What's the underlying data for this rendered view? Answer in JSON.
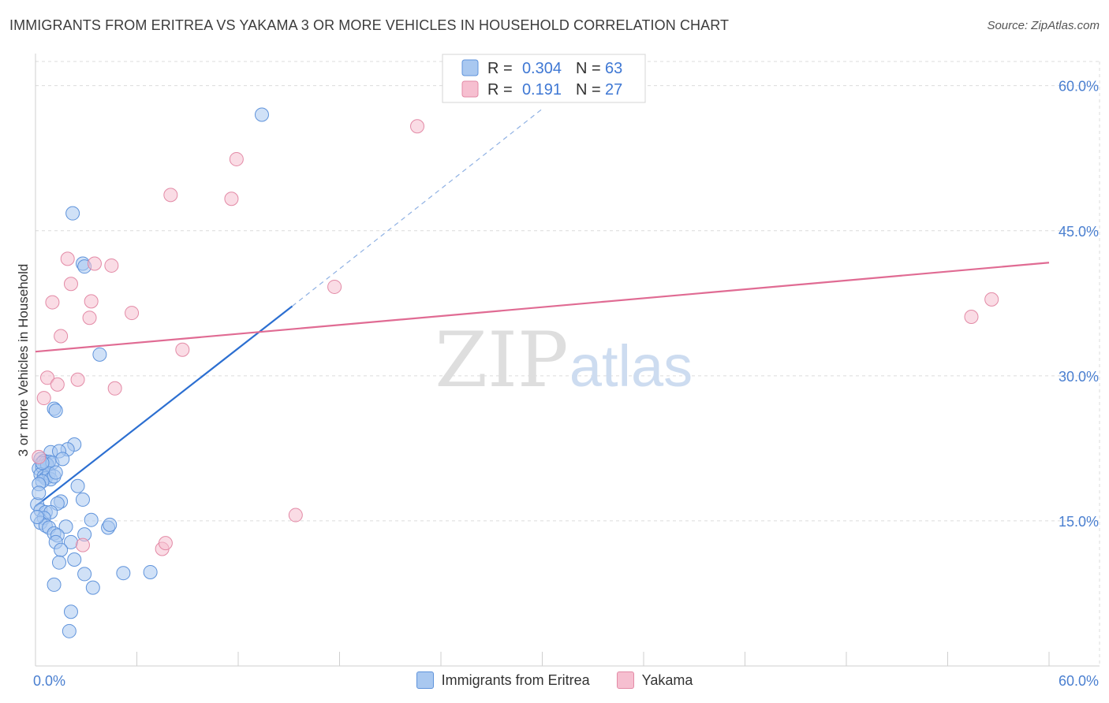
{
  "title": "IMMIGRANTS FROM ERITREA VS YAKAMA 3 OR MORE VEHICLES IN HOUSEHOLD CORRELATION CHART",
  "source": "Source: ZipAtlas.com",
  "watermark": {
    "zip": "ZIP",
    "atlas": "atlas"
  },
  "legend_top": [
    {
      "r_label": "R =",
      "r_value": "0.304",
      "n_label": "N =",
      "n_value": "63"
    },
    {
      "r_label": "R =",
      "r_value": "0.191",
      "n_label": "N =",
      "n_value": "27"
    }
  ],
  "legend_bottom": [
    "Immigrants from Eritrea",
    "Yakama"
  ],
  "chart_data": {
    "type": "scatter",
    "title": "IMMIGRANTS FROM ERITREA VS YAKAMA 3 OR MORE VEHICLES IN HOUSEHOLD CORRELATION CHART",
    "xlabel": "",
    "ylabel": "3 or more Vehicles in Household",
    "xlim": [
      0,
      60
    ],
    "ylim": [
      0,
      62.5
    ],
    "x_tick_labels": [
      "0.0%",
      "60.0%"
    ],
    "y_ticks": [
      15,
      30,
      45,
      60
    ],
    "y_tick_labels": [
      "15.0%",
      "30.0%",
      "45.0%",
      "60.0%"
    ],
    "grid": true,
    "legend_position": "top-center",
    "colors": {
      "eritrea_fill": "#a9c8f0",
      "eritrea_stroke": "#5f93db",
      "eritrea_line": "#2c6fd1",
      "yakama_fill": "#f6bfd0",
      "yakama_stroke": "#e38aa6",
      "yakama_line": "#e06b93",
      "tick_text": "#4a7fd0",
      "grid": "#dcdcdc"
    },
    "series": [
      {
        "name": "Immigrants from Eritrea",
        "r": 0.304,
        "n": 63,
        "trend": {
          "x0": 0,
          "y0": 16.5,
          "x1": 15.2,
          "y1": 37.2,
          "dash_to_x": 30,
          "dash_to_y": 57.6
        },
        "points": [
          [
            13.4,
            57.0
          ],
          [
            2.2,
            46.8
          ],
          [
            2.8,
            41.6
          ],
          [
            2.9,
            41.3
          ],
          [
            3.8,
            32.2
          ],
          [
            1.1,
            26.6
          ],
          [
            1.2,
            26.4
          ],
          [
            2.3,
            22.9
          ],
          [
            1.9,
            22.4
          ],
          [
            0.9,
            22.1
          ],
          [
            1.4,
            22.2
          ],
          [
            0.3,
            21.4
          ],
          [
            0.5,
            21.2
          ],
          [
            0.6,
            21.0
          ],
          [
            0.8,
            21.1
          ],
          [
            0.2,
            20.4
          ],
          [
            0.4,
            20.6
          ],
          [
            0.7,
            20.8
          ],
          [
            1.0,
            21.0
          ],
          [
            0.3,
            19.8
          ],
          [
            0.5,
            19.6
          ],
          [
            0.6,
            19.4
          ],
          [
            0.8,
            19.9
          ],
          [
            0.9,
            19.3
          ],
          [
            1.1,
            19.6
          ],
          [
            0.4,
            19.1
          ],
          [
            1.2,
            20.0
          ],
          [
            0.2,
            18.8
          ],
          [
            0.1,
            16.7
          ],
          [
            0.3,
            16.1
          ],
          [
            0.6,
            15.9
          ],
          [
            2.5,
            18.6
          ],
          [
            2.8,
            17.2
          ],
          [
            1.5,
            17.0
          ],
          [
            1.3,
            16.8
          ],
          [
            0.9,
            15.9
          ],
          [
            0.5,
            15.3
          ],
          [
            3.3,
            15.1
          ],
          [
            0.3,
            14.8
          ],
          [
            0.6,
            14.5
          ],
          [
            0.8,
            14.3
          ],
          [
            1.8,
            14.4
          ],
          [
            1.1,
            13.7
          ],
          [
            1.3,
            13.5
          ],
          [
            2.9,
            13.6
          ],
          [
            4.3,
            14.3
          ],
          [
            4.4,
            14.6
          ],
          [
            1.2,
            12.8
          ],
          [
            2.1,
            12.8
          ],
          [
            1.5,
            12.0
          ],
          [
            2.3,
            11.0
          ],
          [
            1.4,
            10.7
          ],
          [
            2.9,
            9.5
          ],
          [
            5.2,
            9.6
          ],
          [
            6.8,
            9.7
          ],
          [
            1.1,
            8.4
          ],
          [
            3.4,
            8.1
          ],
          [
            2.1,
            5.6
          ],
          [
            2.0,
            3.6
          ],
          [
            0.1,
            15.4
          ],
          [
            0.2,
            17.9
          ],
          [
            0.4,
            21.0
          ],
          [
            1.6,
            21.4
          ]
        ]
      },
      {
        "name": "Yakama",
        "r": 0.191,
        "n": 27,
        "trend": {
          "x0": 0,
          "y0": 32.5,
          "x1": 60,
          "y1": 41.7
        },
        "points": [
          [
            22.6,
            55.8
          ],
          [
            11.9,
            52.4
          ],
          [
            8.0,
            48.7
          ],
          [
            11.6,
            48.3
          ],
          [
            1.9,
            42.1
          ],
          [
            3.5,
            41.6
          ],
          [
            4.5,
            41.4
          ],
          [
            2.1,
            39.5
          ],
          [
            17.7,
            39.2
          ],
          [
            3.3,
            37.7
          ],
          [
            1.0,
            37.6
          ],
          [
            56.6,
            37.9
          ],
          [
            55.4,
            36.1
          ],
          [
            5.7,
            36.5
          ],
          [
            3.2,
            36.0
          ],
          [
            1.5,
            34.1
          ],
          [
            8.7,
            32.7
          ],
          [
            0.7,
            29.8
          ],
          [
            2.5,
            29.6
          ],
          [
            1.3,
            29.1
          ],
          [
            4.7,
            28.7
          ],
          [
            0.5,
            27.7
          ],
          [
            0.2,
            21.6
          ],
          [
            15.4,
            15.6
          ],
          [
            2.8,
            12.5
          ],
          [
            7.5,
            12.1
          ],
          [
            7.7,
            12.7
          ]
        ]
      }
    ]
  }
}
